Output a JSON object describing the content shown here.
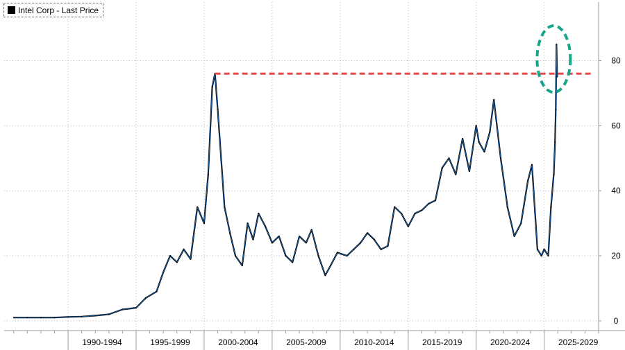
{
  "chart_data": {
    "type": "line",
    "title": "",
    "xlabel": "",
    "ylabel": "",
    "legend": {
      "position": "top-left",
      "entries": [
        "Intel Corp - Last Price"
      ]
    },
    "series": [
      {
        "name": "Intel Corp - Last Price",
        "color": "#000000",
        "x": [
          1986.0,
          1987.0,
          1988.0,
          1989.0,
          1990.0,
          1991.0,
          1992.0,
          1993.0,
          1994.0,
          1995.0,
          1995.7,
          1996.5,
          1997.0,
          1997.5,
          1998.0,
          1998.5,
          1999.0,
          1999.5,
          2000.0,
          2000.3,
          2000.6,
          2000.8,
          2001.0,
          2001.5,
          2001.9,
          2002.3,
          2002.8,
          2003.2,
          2003.6,
          2004.0,
          2004.5,
          2005.0,
          2005.5,
          2006.0,
          2006.5,
          2007.0,
          2007.5,
          2007.9,
          2008.4,
          2008.9,
          2009.3,
          2009.8,
          2010.5,
          2011.0,
          2011.5,
          2012.0,
          2012.5,
          2013.0,
          2013.5,
          2014.0,
          2014.5,
          2015.0,
          2015.5,
          2016.0,
          2016.5,
          2017.0,
          2017.5,
          2018.0,
          2018.5,
          2019.0,
          2019.5,
          2020.0,
          2020.2,
          2020.6,
          2021.0,
          2021.3,
          2021.8,
          2022.3,
          2022.8,
          2023.3,
          2023.8,
          2024.1,
          2024.5,
          2024.8,
          2025.0,
          2025.3,
          2025.5,
          2025.7,
          2025.8,
          2025.85,
          2025.9,
          2025.95
        ],
        "y": [
          1,
          1,
          1,
          1,
          1.2,
          1.3,
          1.6,
          2,
          3.5,
          4,
          7,
          9,
          15,
          20,
          18,
          22,
          19,
          35,
          30,
          45,
          72,
          76,
          65,
          35,
          27,
          20,
          17,
          30,
          25,
          33,
          29,
          24,
          26,
          20,
          18,
          26,
          24,
          28,
          20,
          14,
          17,
          21,
          20,
          22,
          24,
          27,
          25,
          22,
          23,
          35,
          33,
          29,
          33,
          34,
          36,
          37,
          47,
          50,
          45,
          56,
          46,
          60,
          55,
          52,
          58,
          68,
          50,
          35,
          26,
          30,
          43,
          48,
          22,
          20,
          22,
          20,
          35,
          45,
          55,
          65,
          85,
          75
        ]
      }
    ],
    "annotations": [
      {
        "type": "horizontal-dashed-line",
        "y": 76,
        "x_from": 2000.8,
        "x_to": 2028.5,
        "color": "#e34b4b"
      },
      {
        "type": "ellipse-highlight",
        "x_center": 2025.7,
        "y_center": 80.5,
        "color": "#17a589"
      }
    ],
    "xlim": [
      1985.3,
      2029.0
    ],
    "ylim": [
      -3,
      98
    ],
    "yticks": [
      0,
      20,
      40,
      60,
      80
    ],
    "xtick_labels": [
      "1990-1994",
      "1995-1999",
      "2000-2004",
      "2005-2009",
      "2010-2014",
      "2015-2019",
      "2020-2024",
      "2025-2029"
    ],
    "grid": true,
    "y_axis_side": "right"
  }
}
